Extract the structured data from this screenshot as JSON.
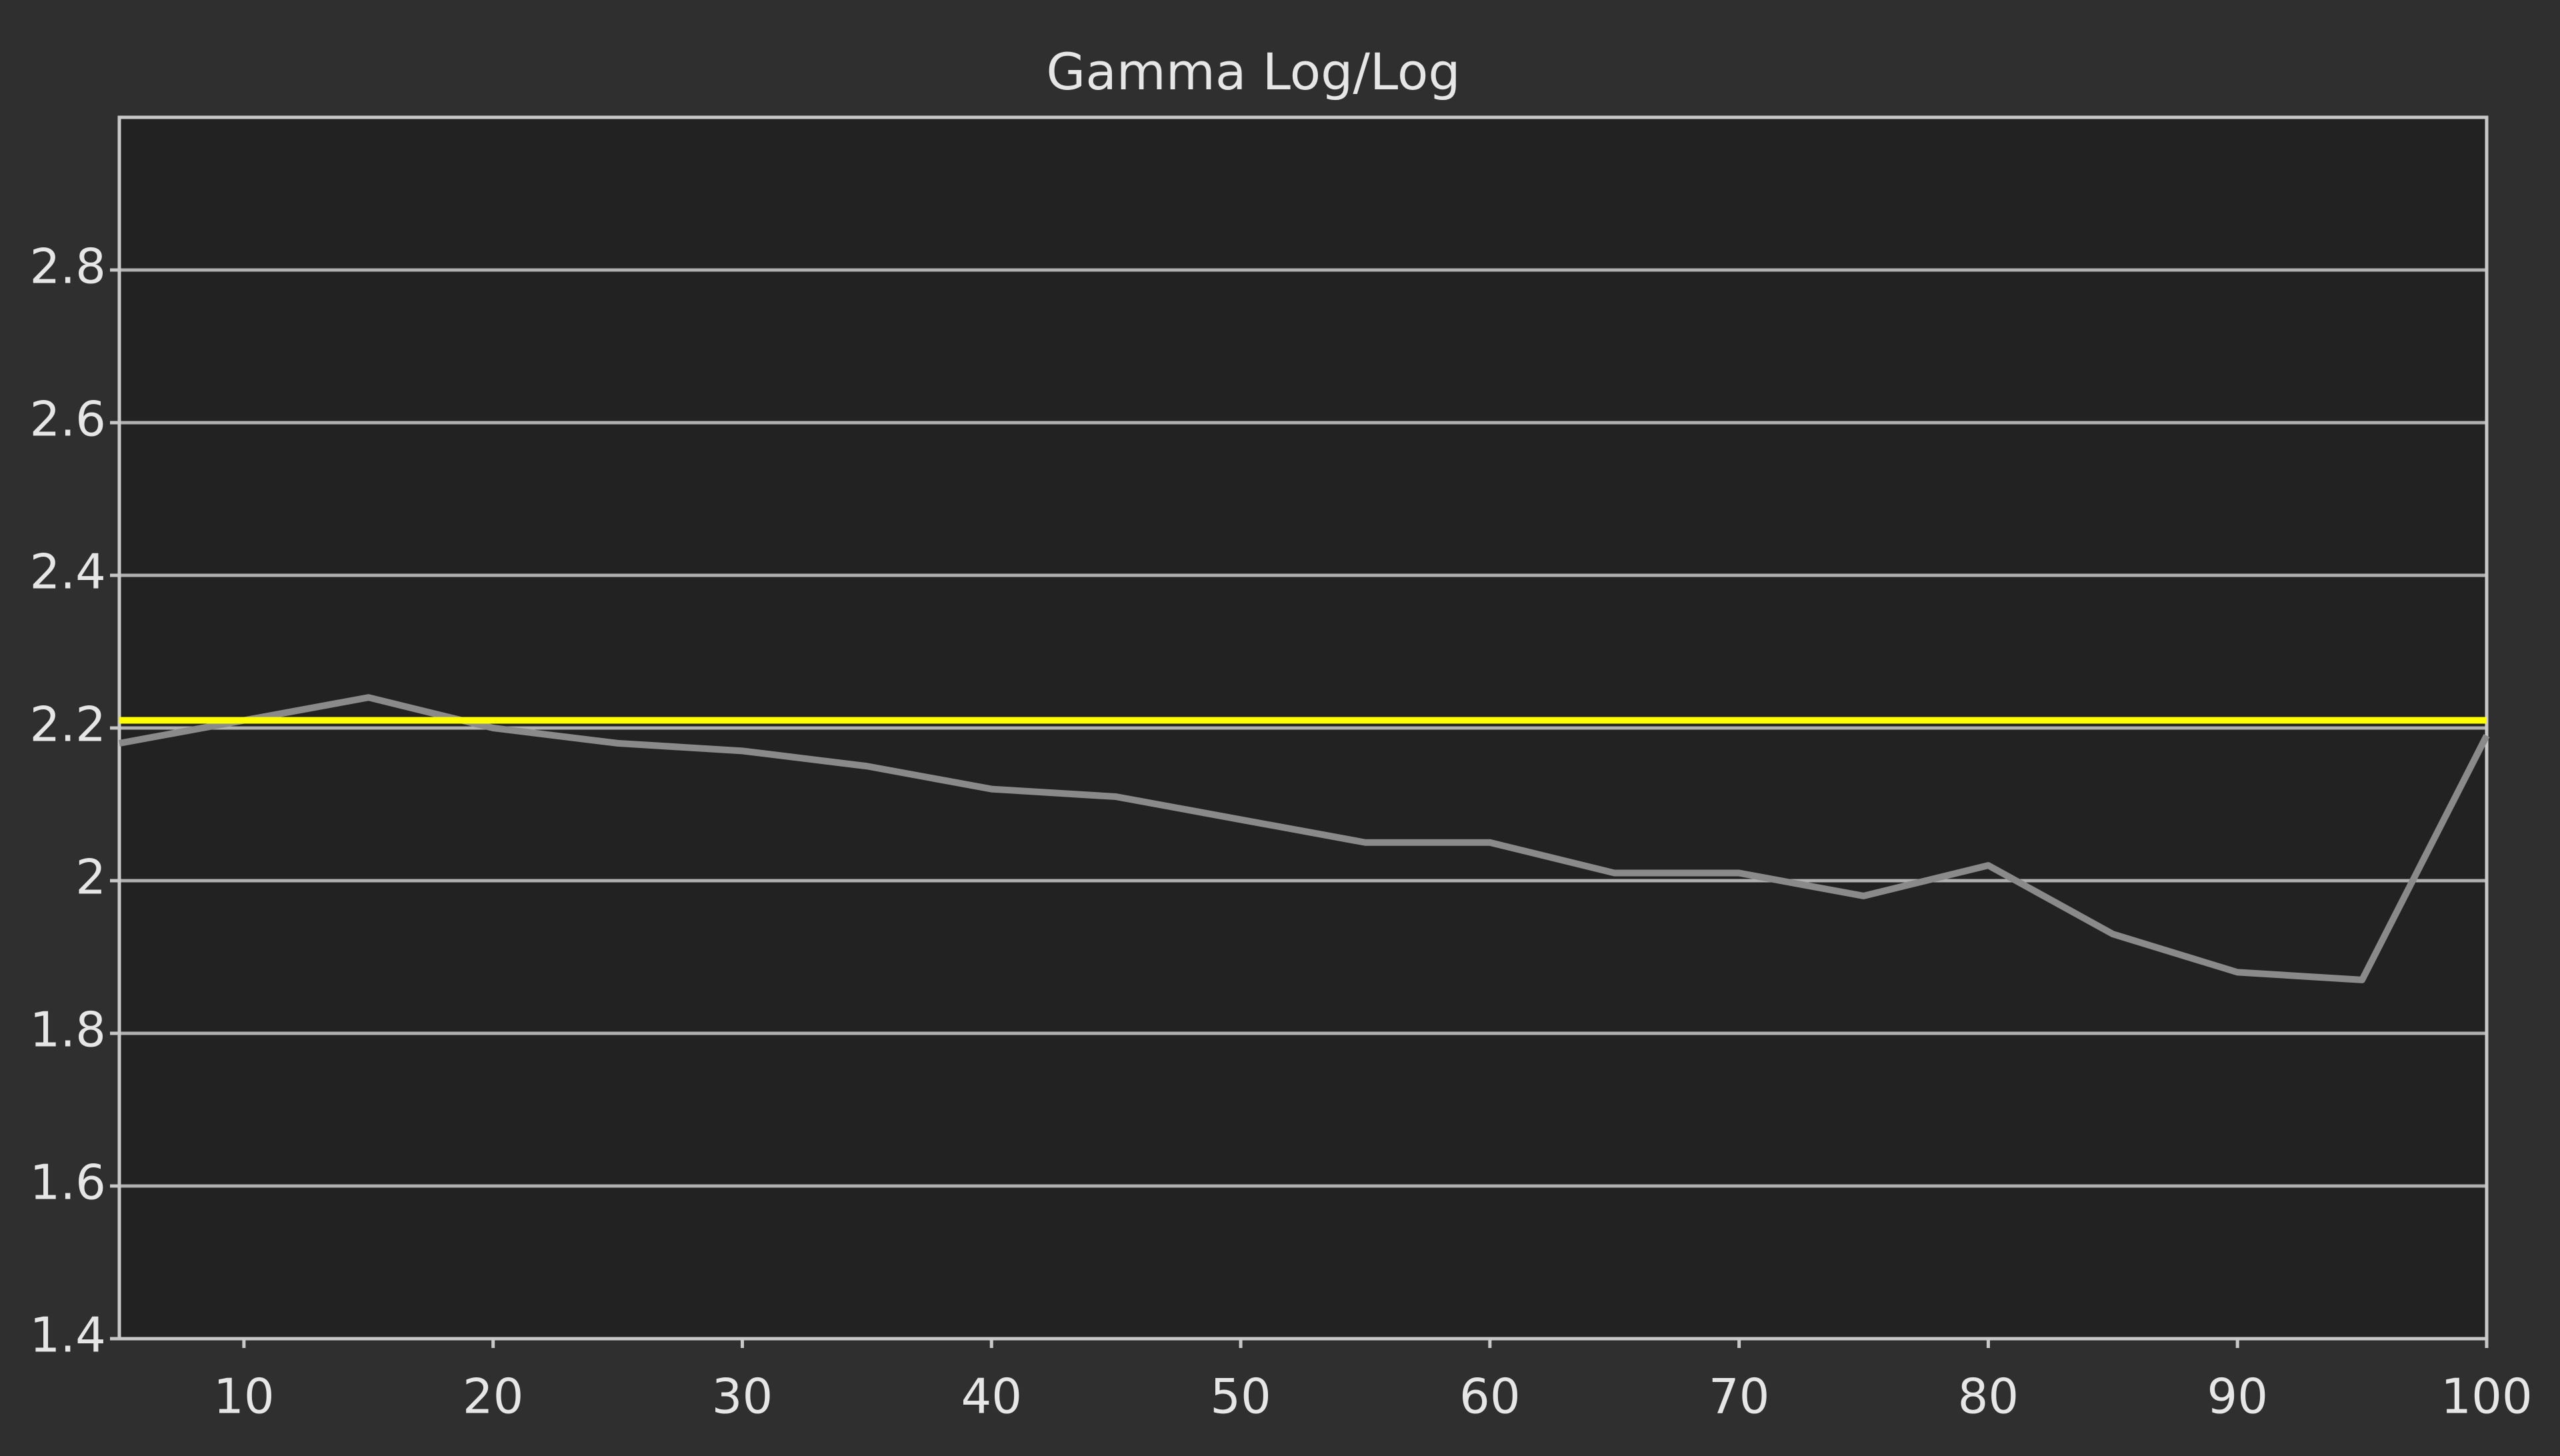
{
  "chart_data": {
    "type": "line",
    "title": "Gamma Log/Log",
    "x": [
      5,
      10,
      15,
      20,
      25,
      30,
      35,
      40,
      45,
      50,
      55,
      60,
      65,
      70,
      75,
      80,
      85,
      90,
      95,
      100
    ],
    "series": [
      {
        "color": "#8a8a8a",
        "values": [
          2.18,
          2.21,
          2.24,
          2.2,
          2.18,
          2.17,
          2.15,
          2.12,
          2.11,
          2.08,
          2.05,
          2.05,
          2.01,
          2.01,
          1.98,
          2.02,
          1.93,
          1.88,
          1.87,
          2.19
        ]
      },
      {
        "color": "#ffff00",
        "values": [
          2.21,
          2.21,
          2.21,
          2.21,
          2.21,
          2.21,
          2.21,
          2.21,
          2.21,
          2.21,
          2.21,
          2.21,
          2.21,
          2.21,
          2.21,
          2.21,
          2.21,
          2.21,
          2.21,
          2.21
        ]
      }
    ],
    "xlim": [
      5,
      100
    ],
    "xticks": [
      10,
      20,
      30,
      40,
      50,
      60,
      70,
      80,
      90,
      100
    ],
    "ylim": [
      1.4,
      3.0
    ],
    "yticks": [
      1.4,
      1.6,
      1.8,
      2,
      2.2,
      2.4,
      2.6,
      2.8
    ],
    "grid": true
  }
}
